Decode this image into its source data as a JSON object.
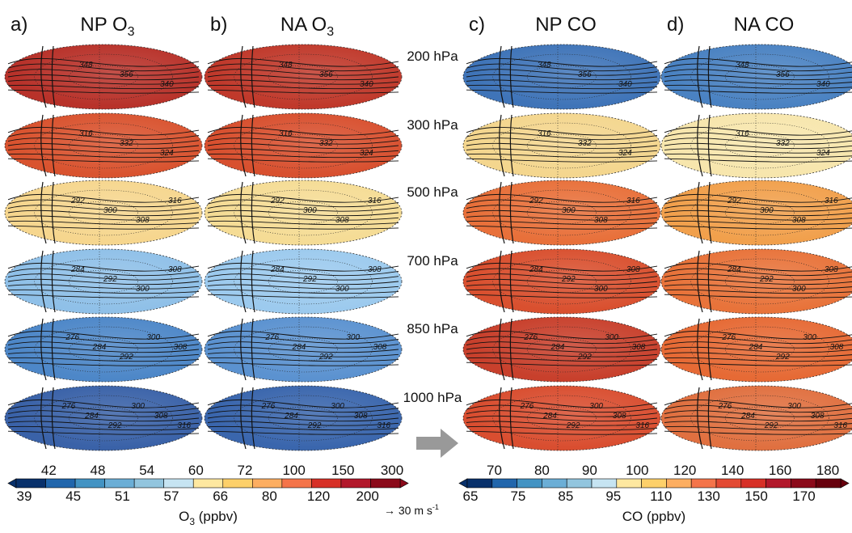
{
  "panels": [
    {
      "label": "a)",
      "title": "NP O",
      "title_sub": "3"
    },
    {
      "label": "b)",
      "title": "NA O",
      "title_sub": "3"
    },
    {
      "label": "c)",
      "title": "NP CO"
    },
    {
      "label": "d)",
      "title": "NA CO"
    }
  ],
  "levels": [
    "200 hPa",
    "300 hPa",
    "500 hPa",
    "700 hPa",
    "850 hPa",
    "1000 hPa"
  ],
  "contour_labels": [
    [
      "348",
      "356",
      "340"
    ],
    [
      "316",
      "332",
      "324"
    ],
    [
      "292",
      "300",
      "308",
      "316"
    ],
    [
      "284",
      "292",
      "300",
      "308"
    ],
    [
      "276",
      "284",
      "292",
      "300",
      "308"
    ],
    [
      "276",
      "284",
      "292",
      "300",
      "308",
      "316"
    ]
  ],
  "colorbars": [
    {
      "top_labels": [
        "42",
        "48",
        "54",
        "60",
        "72",
        "100",
        "150",
        "300"
      ],
      "bottom_labels": [
        "39",
        "45",
        "51",
        "57",
        "66",
        "80",
        "120",
        "200"
      ],
      "title": "O",
      "title_sub": "3",
      "title_unit": " (ppbv)"
    },
    {
      "top_labels": [
        "70",
        "80",
        "90",
        "100",
        "120",
        "140",
        "160",
        "180"
      ],
      "bottom_labels": [
        "65",
        "75",
        "85",
        "95",
        "110",
        "130",
        "150",
        "170"
      ],
      "title": "CO (ppbv)"
    }
  ],
  "wind_scale": {
    "text": "→ 30 m s",
    "sup": "-1"
  }
}
